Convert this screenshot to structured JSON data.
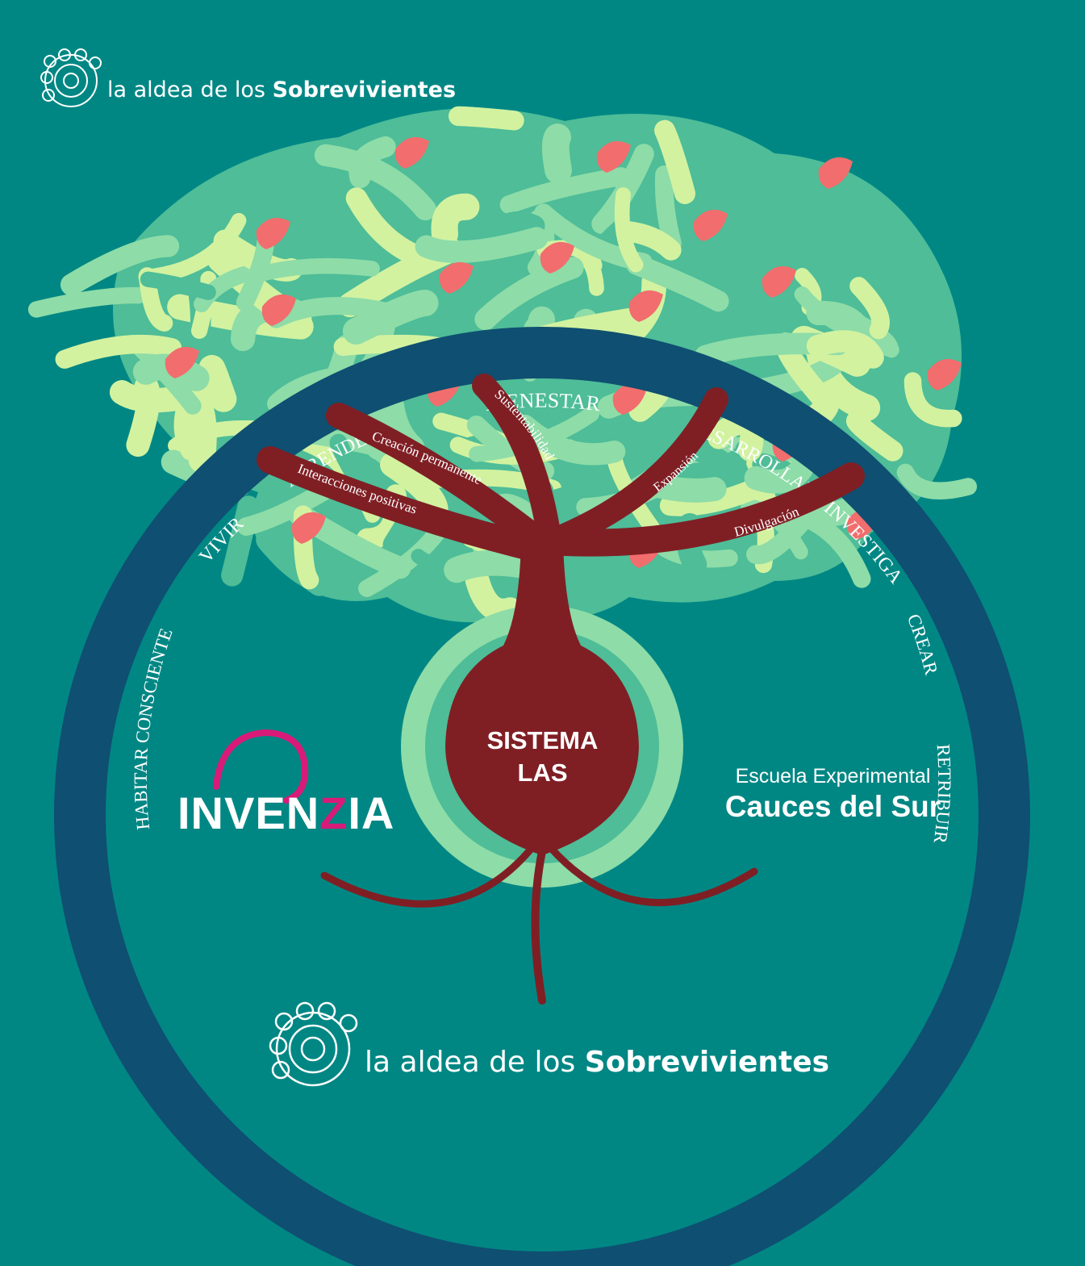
{
  "header_brand": {
    "prefix": "la aldea de los",
    "name": "Sobrevivientes"
  },
  "footer_brand": {
    "prefix": "la aldea de los",
    "name": "Sobrevivientes"
  },
  "ring_words": {
    "bienestar": "BIENESTAR",
    "aprender": "APRENDER",
    "desarrollar": "DESARROLLAR",
    "vivir": "VIVIR",
    "investigar": "INVESTIGAR",
    "habitar": "HABITAR CONSCIENTE",
    "crear": "CREAR",
    "retribuir": "RETRIBUIR"
  },
  "branches": {
    "sustentabilidad": "Sustentabilidad",
    "creacion": "Creación permanente",
    "interacciones": "Interacciones positivas",
    "expansion": "Expansión",
    "divulgacion": "Divulgación"
  },
  "core": {
    "line1": "SISTEMA",
    "line2": "LAS"
  },
  "school": {
    "line1": "Escuela Experimental",
    "line2": "Cauces del Sur"
  },
  "invenzia": {
    "part1": "INVEN",
    "z": "Z",
    "part2": "IA"
  },
  "colors": {
    "background": "#008784",
    "ring": "#0f4f71",
    "trunk": "#7f1f24",
    "leaf_dark": "#4ebd98",
    "leaf_mid": "#8edca8",
    "leaf_light": "#d2f2a0",
    "fruit": "#f26d6d",
    "accent_pink": "#d81b78"
  }
}
